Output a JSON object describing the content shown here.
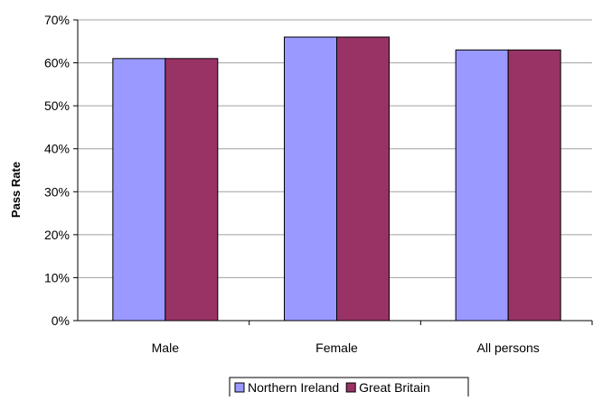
{
  "chart_data": {
    "type": "bar",
    "title": "",
    "xlabel": "",
    "ylabel": "Pass Rate",
    "ylim": [
      0,
      70
    ],
    "yticks": [
      0,
      10,
      20,
      30,
      40,
      50,
      60,
      70
    ],
    "ytick_format": "percent",
    "grid": true,
    "legend_position": "bottom-center",
    "categories": [
      "Male",
      "Female",
      "All persons"
    ],
    "series": [
      {
        "name": "Northern Ireland",
        "color": "#9999ff",
        "values": [
          61,
          66,
          63
        ]
      },
      {
        "name": "Great Britain",
        "color": "#993366",
        "values": [
          61,
          66,
          63
        ]
      }
    ]
  }
}
